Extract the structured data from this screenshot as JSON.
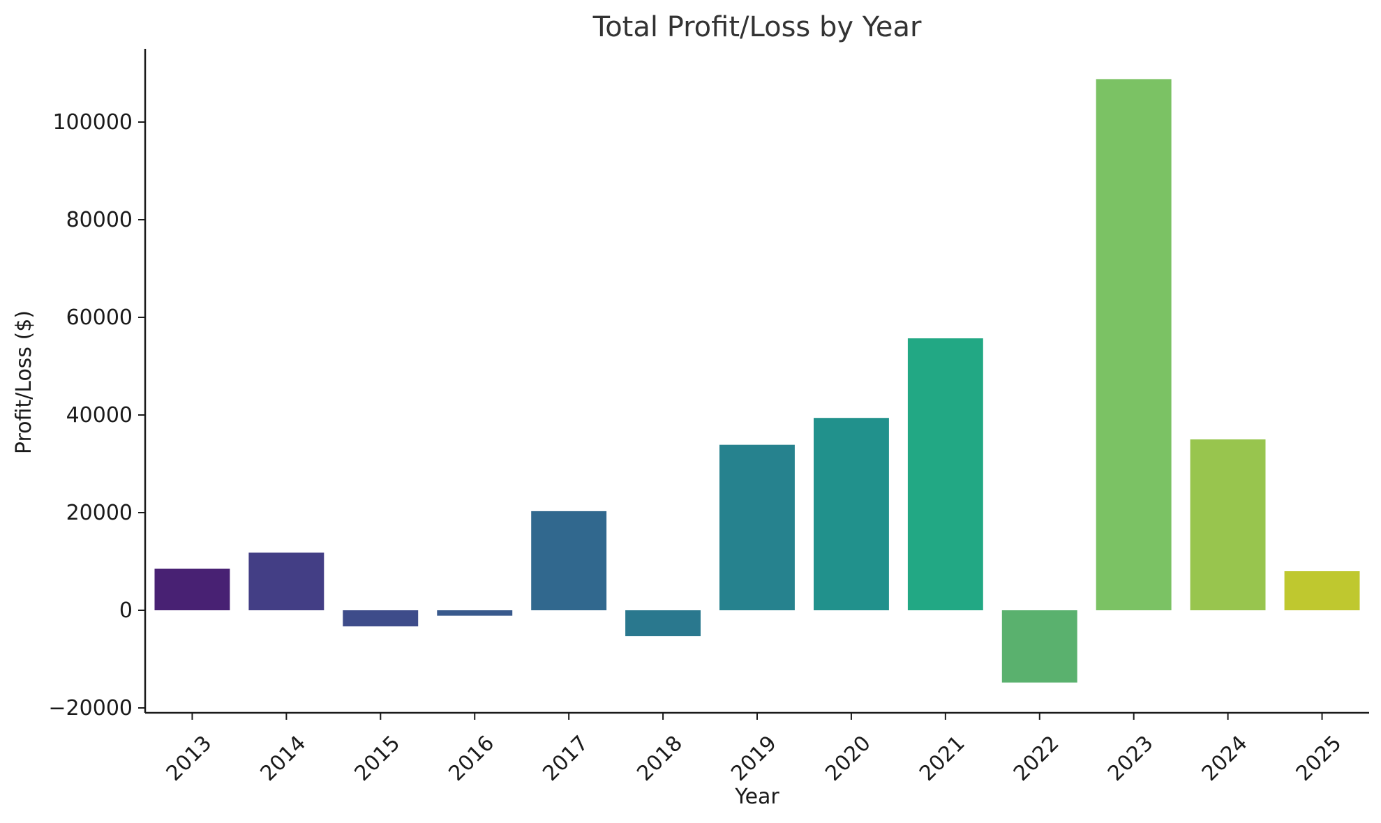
{
  "chart_data": {
    "type": "bar",
    "title": "Total Profit/Loss by Year",
    "xlabel": "Year",
    "ylabel": "Profit/Loss ($)",
    "categories": [
      "2013",
      "2014",
      "2015",
      "2016",
      "2017",
      "2018",
      "2019",
      "2020",
      "2021",
      "2022",
      "2023",
      "2024",
      "2025"
    ],
    "values": [
      8500,
      11800,
      -3300,
      -1100,
      20300,
      -5300,
      33900,
      39400,
      55700,
      -14800,
      108800,
      35000,
      8000
    ],
    "colors": [
      "#482173",
      "#433e85",
      "#3e4c8a",
      "#38598c",
      "#31688e",
      "#2a788e",
      "#26828e",
      "#21918c",
      "#22a884",
      "#5ab16e",
      "#7bc264",
      "#98c54e",
      "#bfc82f"
    ],
    "yticks": [
      -20000,
      0,
      20000,
      40000,
      60000,
      80000,
      100000
    ],
    "ytick_labels": [
      "−20000",
      "0",
      "20000",
      "40000",
      "60000",
      "80000",
      "100000"
    ],
    "ylim": [
      -21000,
      115000
    ],
    "grid": false,
    "legend": "none"
  }
}
